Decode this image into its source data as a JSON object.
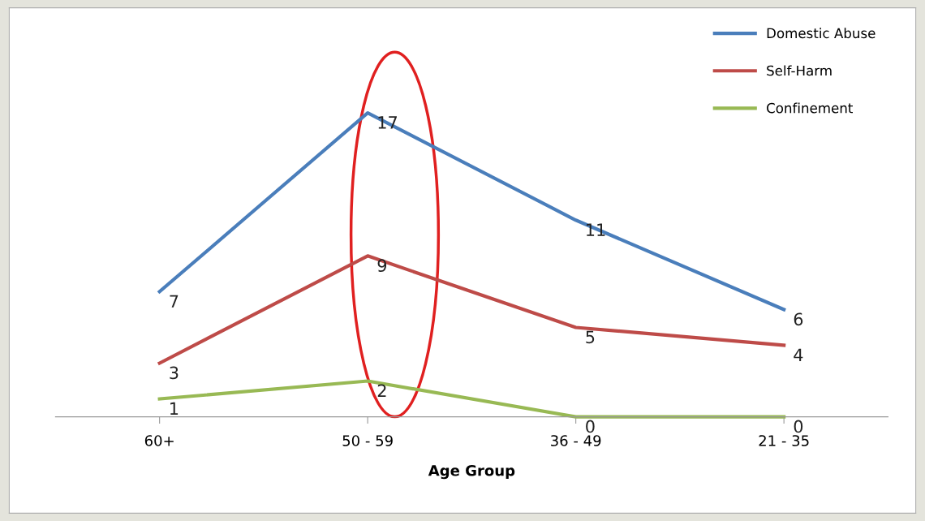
{
  "chart_data": {
    "type": "line",
    "xlabel": "Age Group",
    "categories": [
      "60+",
      "50 - 59",
      "36 - 49",
      "21 - 35"
    ],
    "series": [
      {
        "name": "Domestic Abuse",
        "color": "#4a7ebb",
        "values": [
          7,
          17,
          11,
          6
        ]
      },
      {
        "name": "Self-Harm",
        "color": "#be4b48",
        "values": [
          3,
          9,
          5,
          4
        ]
      },
      {
        "name": "Confinement",
        "color": "#98b954",
        "values": [
          1,
          2,
          0,
          0
        ]
      }
    ],
    "data_labels": true,
    "legend": "top right",
    "grid": false,
    "marker": "none",
    "line_style": "solid"
  }
}
